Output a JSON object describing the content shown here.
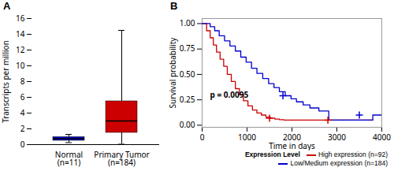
{
  "chart_data": [
    {
      "type": "box",
      "title": "A",
      "ylabel": "Transcripts per million",
      "categories": [
        "Normal\n(n=11)",
        "Primary Tumor\n(n=184)"
      ],
      "colors": [
        "#0000cc",
        "#cc0000"
      ],
      "median": [
        0.75,
        3.0
      ],
      "q1": [
        0.5,
        1.5
      ],
      "q3": [
        0.95,
        5.5
      ],
      "whislo": [
        0.25,
        0.05
      ],
      "whishi": [
        1.3,
        14.5
      ],
      "ylim": [
        0,
        16
      ],
      "yticks": [
        0,
        2,
        4,
        6,
        8,
        10,
        12,
        14,
        16
      ]
    },
    {
      "type": "step",
      "title": "B",
      "xlabel": "Time in days",
      "ylabel": "Survival probability",
      "annotation": "p = 0.0095",
      "xlim": [
        0,
        4000
      ],
      "ylim": [
        -0.02,
        1.05
      ],
      "xticks": [
        0,
        1000,
        2000,
        3000,
        4000
      ],
      "yticks": [
        {
          "value": 0.0,
          "label": "0.00"
        },
        {
          "value": 0.25,
          "label": "0.25"
        },
        {
          "value": 0.5,
          "label": "0.50"
        },
        {
          "value": 0.75,
          "label": "0.75"
        },
        {
          "value": 1.0,
          "label": "1.00"
        }
      ],
      "legend": "lower right",
      "legend_title": "Expression Level",
      "series": [
        {
          "name": "High expression (n=92)",
          "color": "#cc0000",
          "x": [
            0,
            100,
            180,
            250,
            320,
            400,
            480,
            560,
            650,
            740,
            830,
            920,
            1020,
            1120,
            1220,
            1320,
            1420,
            1520,
            1620,
            1720,
            1820,
            1900,
            3800
          ],
          "values": [
            1.0,
            0.93,
            0.86,
            0.79,
            0.72,
            0.65,
            0.58,
            0.5,
            0.43,
            0.36,
            0.3,
            0.24,
            0.19,
            0.15,
            0.12,
            0.1,
            0.08,
            0.07,
            0.06,
            0.055,
            0.05,
            0.05,
            0.05
          ],
          "censor_x": [
            1500,
            2800
          ],
          "censor_y": [
            0.07,
            0.05
          ]
        },
        {
          "name": "Low/Medium expression (n=184)",
          "color": "#0000cc",
          "x": [
            0,
            180,
            280,
            380,
            500,
            620,
            740,
            860,
            980,
            1100,
            1220,
            1350,
            1480,
            1600,
            1720,
            1850,
            1980,
            2100,
            2250,
            2400,
            2600,
            2820,
            2820,
            2830,
            3200,
            3800,
            3800,
            4000
          ],
          "values": [
            1.0,
            0.97,
            0.93,
            0.88,
            0.83,
            0.78,
            0.73,
            0.67,
            0.62,
            0.56,
            0.51,
            0.46,
            0.41,
            0.37,
            0.33,
            0.29,
            0.26,
            0.23,
            0.2,
            0.17,
            0.14,
            0.12,
            0.05,
            0.05,
            0.05,
            0.05,
            0.1,
            0.1
          ],
          "censor_x": [
            1800,
            3500
          ],
          "censor_y": [
            0.29,
            0.1
          ]
        }
      ]
    }
  ]
}
